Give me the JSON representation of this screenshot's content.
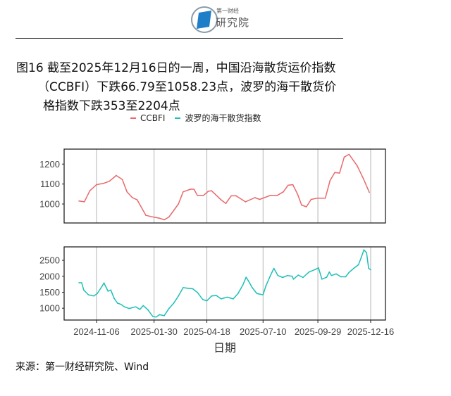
{
  "header": {
    "logo_small": "第一财经",
    "logo_main": "研究院"
  },
  "title": {
    "line1": "图16  截至2025年12月16日的一周，中国沿海散货运价指数",
    "line2": "（CCBFI）下跌66.79至1058.23点，波罗的海干散货价",
    "line3": "格指数下跌353至2204点"
  },
  "source": "来源：第一财经研究院、Wind",
  "colors": {
    "ccbfi": "#e8696b",
    "bdi": "#1fbfb8"
  },
  "chart_data": {
    "type": "line",
    "xlabel": "日期",
    "x_ticks": [
      "2024-11-06",
      "2025-01-30",
      "2025-04-18",
      "2025-07-10",
      "2025-09-29",
      "2025-12-16"
    ],
    "legend": "top",
    "grid": "vertical only",
    "panels": [
      {
        "series_name": "CCBFI",
        "y_ticks": [
          1000,
          1100,
          1200
        ],
        "ylim": [
          905,
          1275
        ],
        "points": [
          [
            "2024-10-11",
            1015
          ],
          [
            "2024-10-19",
            1011
          ],
          [
            "2024-10-27",
            1066
          ],
          [
            "2024-11-06",
            1097
          ],
          [
            "2024-11-16",
            1103
          ],
          [
            "2024-11-25",
            1114
          ],
          [
            "2024-12-05",
            1143
          ],
          [
            "2024-12-14",
            1123
          ],
          [
            "2024-12-21",
            1061
          ],
          [
            "2024-12-29",
            1032
          ],
          [
            "2025-01-05",
            1021
          ],
          [
            "2025-01-18",
            943
          ],
          [
            "2025-01-30",
            934
          ],
          [
            "2025-02-07",
            929
          ],
          [
            "2025-02-14",
            921
          ],
          [
            "2025-02-21",
            935
          ],
          [
            "2025-03-07",
            1000
          ],
          [
            "2025-03-14",
            1061
          ],
          [
            "2025-03-25",
            1074
          ],
          [
            "2025-03-30",
            1074
          ],
          [
            "2025-04-04",
            1043
          ],
          [
            "2025-04-13",
            1043
          ],
          [
            "2025-04-20",
            1064
          ],
          [
            "2025-04-25",
            1066
          ],
          [
            "2025-05-09",
            1021
          ],
          [
            "2025-05-16",
            1003
          ],
          [
            "2025-05-24",
            1041
          ],
          [
            "2025-05-31",
            1041
          ],
          [
            "2025-06-14",
            1011
          ],
          [
            "2025-06-28",
            1032
          ],
          [
            "2025-07-05",
            1023
          ],
          [
            "2025-07-21",
            1043
          ],
          [
            "2025-07-31",
            1043
          ],
          [
            "2025-08-09",
            1061
          ],
          [
            "2025-08-16",
            1094
          ],
          [
            "2025-08-23",
            1097
          ],
          [
            "2025-08-30",
            1049
          ],
          [
            "2025-09-05",
            995
          ],
          [
            "2025-09-12",
            986
          ],
          [
            "2025-09-19",
            1023
          ],
          [
            "2025-09-28",
            1029
          ],
          [
            "2025-10-10",
            1029
          ],
          [
            "2025-10-17",
            1118
          ],
          [
            "2025-10-24",
            1158
          ],
          [
            "2025-10-31",
            1155
          ],
          [
            "2025-11-07",
            1235
          ],
          [
            "2025-11-14",
            1249
          ],
          [
            "2025-11-26",
            1192
          ],
          [
            "2025-12-05",
            1129
          ],
          [
            "2025-12-14",
            1058.23
          ]
        ]
      },
      {
        "series_name": "波罗的海干散货指数",
        "y_ticks": [
          1000,
          1500,
          2000,
          2500
        ],
        "ylim": [
          630,
          2920
        ],
        "points": [
          [
            "2024-10-11",
            1797
          ],
          [
            "2024-10-15",
            1797
          ],
          [
            "2024-10-18",
            1571
          ],
          [
            "2024-10-25",
            1421
          ],
          [
            "2024-11-02",
            1383
          ],
          [
            "2024-11-07",
            1459
          ],
          [
            "2024-11-14",
            1684
          ],
          [
            "2024-11-17",
            1790
          ],
          [
            "2024-11-19",
            1700
          ],
          [
            "2024-11-23",
            1534
          ],
          [
            "2024-11-27",
            1571
          ],
          [
            "2024-12-02",
            1308
          ],
          [
            "2024-12-07",
            1158
          ],
          [
            "2024-12-12",
            1120
          ],
          [
            "2024-12-17",
            1045
          ],
          [
            "2024-12-24",
            992
          ],
          [
            "2025-01-03",
            1045
          ],
          [
            "2025-01-09",
            962
          ],
          [
            "2025-01-14",
            1083
          ],
          [
            "2025-01-21",
            947
          ],
          [
            "2025-01-28",
            744
          ],
          [
            "2025-02-02",
            722
          ],
          [
            "2025-02-07",
            797
          ],
          [
            "2025-02-14",
            767
          ],
          [
            "2025-02-21",
            992
          ],
          [
            "2025-02-28",
            1158
          ],
          [
            "2025-03-07",
            1383
          ],
          [
            "2025-03-14",
            1646
          ],
          [
            "2025-03-21",
            1624
          ],
          [
            "2025-03-28",
            1609
          ],
          [
            "2025-04-04",
            1496
          ],
          [
            "2025-04-12",
            1271
          ],
          [
            "2025-04-18",
            1233
          ],
          [
            "2025-04-25",
            1383
          ],
          [
            "2025-05-02",
            1398
          ],
          [
            "2025-05-09",
            1293
          ],
          [
            "2025-05-18",
            1346
          ],
          [
            "2025-05-27",
            1293
          ],
          [
            "2025-06-03",
            1459
          ],
          [
            "2025-06-10",
            1722
          ],
          [
            "2025-06-15",
            1970
          ],
          [
            "2025-06-19",
            1835
          ],
          [
            "2025-06-24",
            1646
          ],
          [
            "2025-07-01",
            1459
          ],
          [
            "2025-07-10",
            1421
          ],
          [
            "2025-07-14",
            1684
          ],
          [
            "2025-07-21",
            2023
          ],
          [
            "2025-07-26",
            2248
          ],
          [
            "2025-08-01",
            2023
          ],
          [
            "2025-08-08",
            1962
          ],
          [
            "2025-08-15",
            2023
          ],
          [
            "2025-08-22",
            2000
          ],
          [
            "2025-08-24",
            1910
          ],
          [
            "2025-08-31",
            2038
          ],
          [
            "2025-09-07",
            1962
          ],
          [
            "2025-09-16",
            2135
          ],
          [
            "2025-09-25",
            2210
          ],
          [
            "2025-09-30",
            2263
          ],
          [
            "2025-10-05",
            1910
          ],
          [
            "2025-10-12",
            1970
          ],
          [
            "2025-10-16",
            2135
          ],
          [
            "2025-10-19",
            2023
          ],
          [
            "2025-10-26",
            2075
          ],
          [
            "2025-11-02",
            1985
          ],
          [
            "2025-11-09",
            1985
          ],
          [
            "2025-11-14",
            2120
          ],
          [
            "2025-11-21",
            2248
          ],
          [
            "2025-11-28",
            2361
          ],
          [
            "2025-12-02",
            2587
          ],
          [
            "2025-12-06",
            2827
          ],
          [
            "2025-12-10",
            2737
          ],
          [
            "2025-12-13",
            2248
          ],
          [
            "2025-12-16",
            2204
          ]
        ]
      }
    ]
  }
}
